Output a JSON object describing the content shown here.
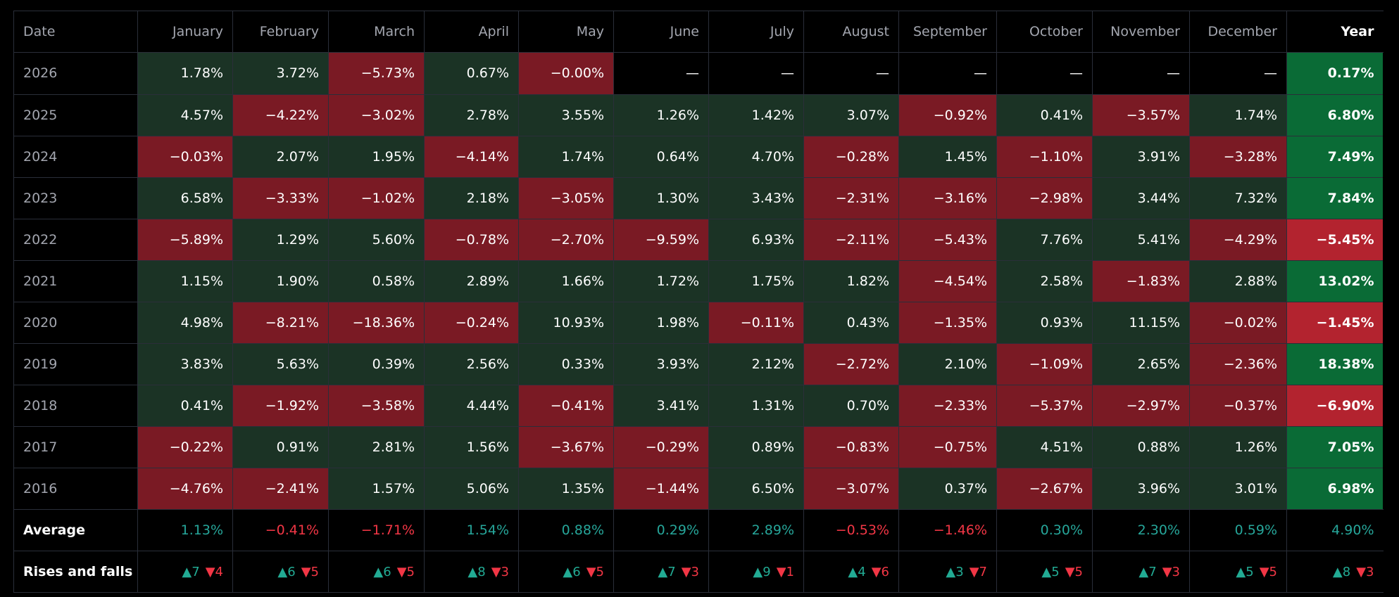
{
  "headers": [
    "Date",
    "January",
    "February",
    "March",
    "April",
    "May",
    "June",
    "July",
    "August",
    "September",
    "October",
    "November",
    "December",
    "Year"
  ],
  "empty_symbol": "—",
  "rows": [
    {
      "year": "2026",
      "months": [
        "1.78%",
        "3.72%",
        "−5.73%",
        "0.67%",
        "−0.00%",
        null,
        null,
        null,
        null,
        null,
        null,
        null
      ],
      "total": "0.17%"
    },
    {
      "year": "2025",
      "months": [
        "4.57%",
        "−4.22%",
        "−3.02%",
        "2.78%",
        "3.55%",
        "1.26%",
        "1.42%",
        "3.07%",
        "−0.92%",
        "0.41%",
        "−3.57%",
        "1.74%"
      ],
      "total": "6.80%"
    },
    {
      "year": "2024",
      "months": [
        "−0.03%",
        "2.07%",
        "1.95%",
        "−4.14%",
        "1.74%",
        "0.64%",
        "4.70%",
        "−0.28%",
        "1.45%",
        "−1.10%",
        "3.91%",
        "−3.28%"
      ],
      "total": "7.49%"
    },
    {
      "year": "2023",
      "months": [
        "6.58%",
        "−3.33%",
        "−1.02%",
        "2.18%",
        "−3.05%",
        "1.30%",
        "3.43%",
        "−2.31%",
        "−3.16%",
        "−2.98%",
        "3.44%",
        "7.32%"
      ],
      "total": "7.84%"
    },
    {
      "year": "2022",
      "months": [
        "−5.89%",
        "1.29%",
        "5.60%",
        "−0.78%",
        "−2.70%",
        "−9.59%",
        "6.93%",
        "−2.11%",
        "−5.43%",
        "7.76%",
        "5.41%",
        "−4.29%"
      ],
      "total": "−5.45%"
    },
    {
      "year": "2021",
      "months": [
        "1.15%",
        "1.90%",
        "0.58%",
        "2.89%",
        "1.66%",
        "1.72%",
        "1.75%",
        "1.82%",
        "−4.54%",
        "2.58%",
        "−1.83%",
        "2.88%"
      ],
      "total": "13.02%"
    },
    {
      "year": "2020",
      "months": [
        "4.98%",
        "−8.21%",
        "−18.36%",
        "−0.24%",
        "10.93%",
        "1.98%",
        "−0.11%",
        "0.43%",
        "−1.35%",
        "0.93%",
        "11.15%",
        "−0.02%"
      ],
      "total": "−1.45%"
    },
    {
      "year": "2019",
      "months": [
        "3.83%",
        "5.63%",
        "0.39%",
        "2.56%",
        "0.33%",
        "3.93%",
        "2.12%",
        "−2.72%",
        "2.10%",
        "−1.09%",
        "2.65%",
        "−2.36%"
      ],
      "total": "18.38%"
    },
    {
      "year": "2018",
      "months": [
        "0.41%",
        "−1.92%",
        "−3.58%",
        "4.44%",
        "−0.41%",
        "3.41%",
        "1.31%",
        "0.70%",
        "−2.33%",
        "−5.37%",
        "−2.97%",
        "−0.37%"
      ],
      "total": "−6.90%"
    },
    {
      "year": "2017",
      "months": [
        "−0.22%",
        "0.91%",
        "2.81%",
        "1.56%",
        "−3.67%",
        "−0.29%",
        "0.89%",
        "−0.83%",
        "−0.75%",
        "4.51%",
        "0.88%",
        "1.26%"
      ],
      "total": "7.05%"
    },
    {
      "year": "2016",
      "months": [
        "−4.76%",
        "−2.41%",
        "1.57%",
        "5.06%",
        "1.35%",
        "−1.44%",
        "6.50%",
        "−3.07%",
        "0.37%",
        "−2.67%",
        "3.96%",
        "3.01%"
      ],
      "total": "6.98%"
    }
  ],
  "average": {
    "label": "Average",
    "values": [
      "1.13%",
      "−0.41%",
      "−1.71%",
      "1.54%",
      "0.88%",
      "0.29%",
      "2.89%",
      "−0.53%",
      "−1.46%",
      "0.30%",
      "2.30%",
      "0.59%",
      "4.90%"
    ]
  },
  "rises_falls": {
    "label": "Rises and falls",
    "up_symbol": "▲",
    "down_symbol": "▼",
    "values": [
      {
        "up": "7",
        "down": "4"
      },
      {
        "up": "6",
        "down": "5"
      },
      {
        "up": "6",
        "down": "5"
      },
      {
        "up": "8",
        "down": "3"
      },
      {
        "up": "6",
        "down": "5"
      },
      {
        "up": "7",
        "down": "3"
      },
      {
        "up": "9",
        "down": "1"
      },
      {
        "up": "4",
        "down": "6"
      },
      {
        "up": "3",
        "down": "7"
      },
      {
        "up": "5",
        "down": "5"
      },
      {
        "up": "7",
        "down": "3"
      },
      {
        "up": "5",
        "down": "5"
      },
      {
        "up": "8",
        "down": "3"
      }
    ]
  },
  "colors": {
    "positive_cell": "#1b3325",
    "negative_cell": "#7a1a24",
    "year_positive": "#0a6b36",
    "year_negative": "#b3232f",
    "avg_positive_text": "#26a69a",
    "avg_negative_text": "#f23645"
  }
}
